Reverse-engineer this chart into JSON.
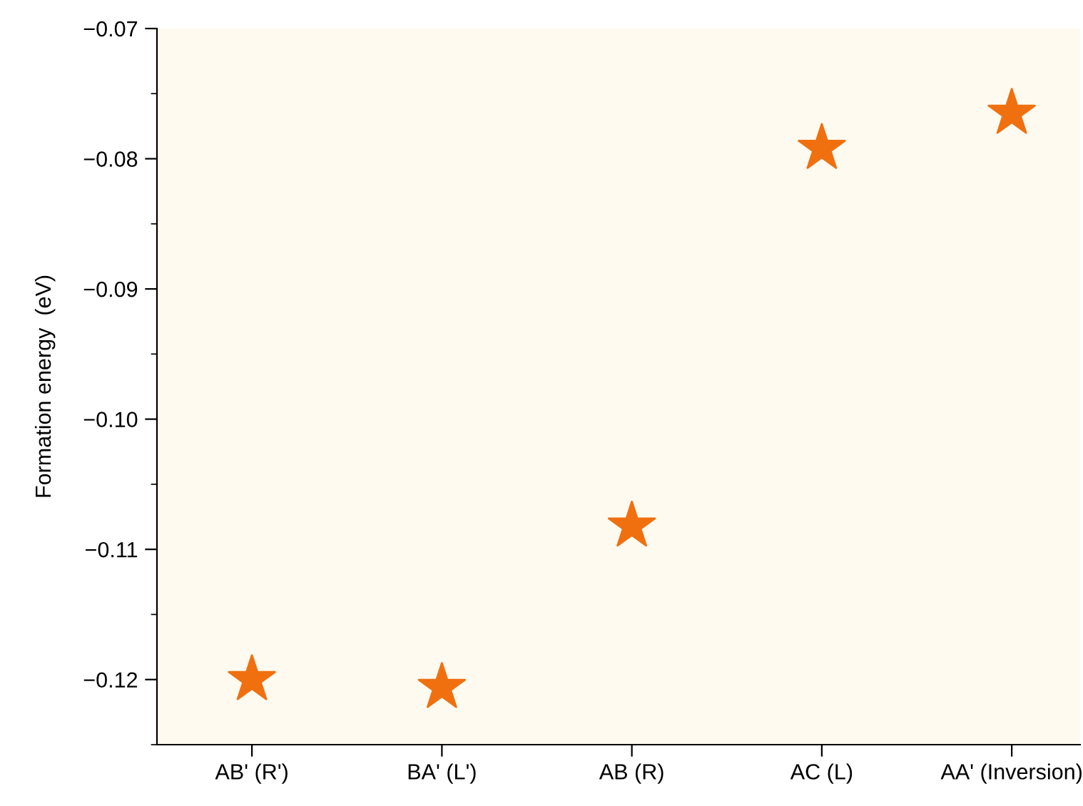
{
  "chart_data": {
    "type": "scatter",
    "ylabel": "Formation energy  (eV)",
    "categories": [
      "AB' (R')",
      "BA' (L')",
      "AB (R)",
      "AC (L)",
      "AA' (Inversion)"
    ],
    "series": [
      {
        "color": "#f07010",
        "values": [
          -0.12,
          -0.1206,
          -0.1082,
          -0.0792,
          -0.0765
        ]
      }
    ],
    "marker": "star",
    "ylim": [
      -0.125,
      -0.07
    ],
    "yticks": [
      {
        "value": -0.12,
        "label": "−0.12"
      },
      {
        "value": -0.11,
        "label": "−0.11"
      },
      {
        "value": -0.1,
        "label": "−0.10"
      },
      {
        "value": -0.09,
        "label": "−0.09"
      },
      {
        "value": -0.08,
        "label": "−0.08"
      },
      {
        "value": -0.07,
        "label": "−0.07"
      }
    ],
    "grid": false,
    "legend": false
  }
}
